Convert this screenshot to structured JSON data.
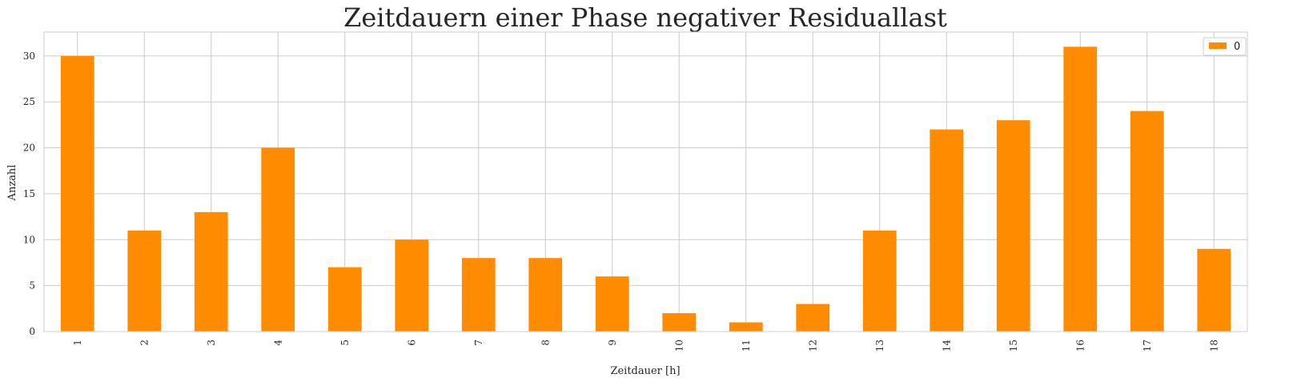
{
  "chart_data": {
    "type": "bar",
    "title": "Zeitdauern einer Phase negativer Residuallast",
    "xlabel": "Zeitdauer [h]",
    "ylabel": "Anzahl",
    "categories": [
      "1",
      "2",
      "3",
      "4",
      "5",
      "6",
      "7",
      "8",
      "9",
      "10",
      "11",
      "12",
      "13",
      "14",
      "15",
      "16",
      "17",
      "18"
    ],
    "series": [
      {
        "name": "0",
        "values": [
          30,
          11,
          13,
          20,
          7,
          10,
          8,
          8,
          6,
          2,
          1,
          3,
          11,
          22,
          23,
          31,
          24,
          9
        ],
        "color": "#ff8c00"
      }
    ],
    "ylim": [
      0,
      32.6
    ],
    "yticks": [
      0,
      5,
      10,
      15,
      20,
      25,
      30
    ],
    "grid": true,
    "legend": "top-right"
  }
}
